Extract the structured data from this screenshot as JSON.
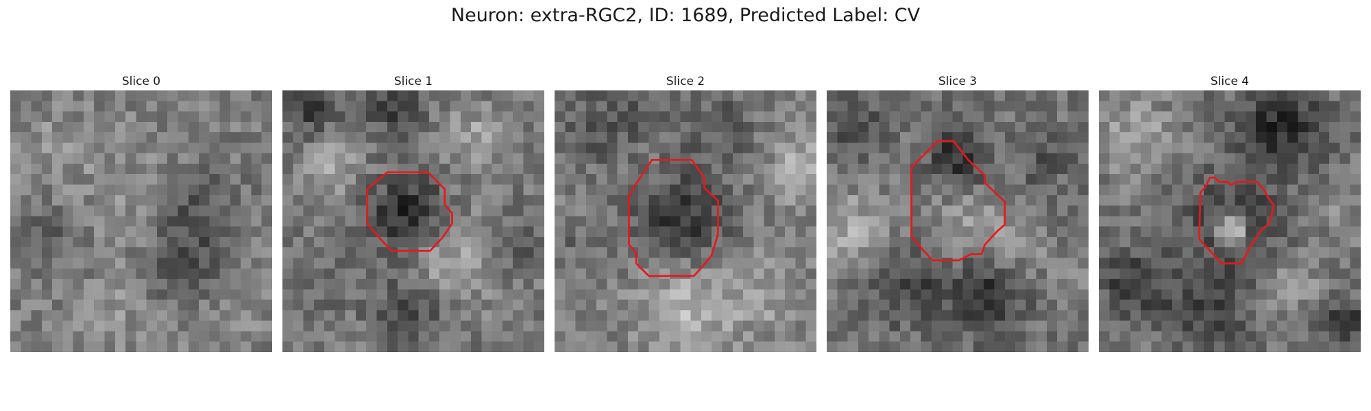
{
  "figure": {
    "title": "Neuron: extra-RGC2, ID: 1689, Predicted Label: CV",
    "contour_color": "#e31a1c",
    "colormap": "grayscale"
  },
  "slices": [
    {
      "label": "Slice 0"
    },
    {
      "label": "Slice 1"
    },
    {
      "label": "Slice 2"
    },
    {
      "label": "Slice 3"
    },
    {
      "label": "Slice 4"
    }
  ]
}
